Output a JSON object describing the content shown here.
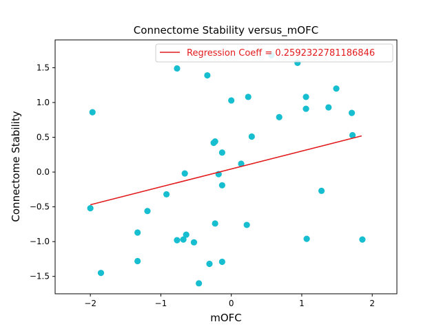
{
  "chart_data": {
    "type": "scatter",
    "title": "Connectome Stability versus_mOFC",
    "xlabel": "mOFC",
    "ylabel": "Connectome Stability",
    "xlim": [
      -2.5,
      2.35
    ],
    "ylim": [
      -1.75,
      1.9
    ],
    "xticks": [
      -2,
      -1,
      0,
      1,
      2
    ],
    "xtick_labels": [
      "−2",
      "−1",
      "0",
      "1",
      "2"
    ],
    "yticks": [
      -1.5,
      -1.0,
      -0.5,
      0.0,
      0.5,
      1.0,
      1.5
    ],
    "ytick_labels": [
      "−1.5",
      "−1.0",
      "−0.5",
      "0.0",
      "0.5",
      "1.0",
      "1.5"
    ],
    "grid": false,
    "legend_position": "top-right",
    "series": [
      {
        "name": "data",
        "kind": "scatter",
        "color": "#17becf",
        "points": [
          {
            "x": -2.0,
            "y": -0.52
          },
          {
            "x": -1.97,
            "y": 0.86
          },
          {
            "x": -1.85,
            "y": -1.45
          },
          {
            "x": -1.33,
            "y": -0.87
          },
          {
            "x": -1.33,
            "y": -1.28
          },
          {
            "x": -1.19,
            "y": -0.56
          },
          {
            "x": -0.92,
            "y": -0.32
          },
          {
            "x": -0.77,
            "y": 1.49
          },
          {
            "x": -0.77,
            "y": -0.98
          },
          {
            "x": -0.68,
            "y": -0.97
          },
          {
            "x": -0.66,
            "y": -0.02
          },
          {
            "x": -0.64,
            "y": -0.9
          },
          {
            "x": -0.53,
            "y": -1.01
          },
          {
            "x": -0.46,
            "y": -1.6
          },
          {
            "x": -0.34,
            "y": 1.39
          },
          {
            "x": -0.31,
            "y": -1.32
          },
          {
            "x": -0.25,
            "y": 0.42
          },
          {
            "x": -0.23,
            "y": 0.44
          },
          {
            "x": -0.23,
            "y": -0.74
          },
          {
            "x": -0.18,
            "y": -0.03
          },
          {
            "x": -0.13,
            "y": 0.28
          },
          {
            "x": -0.13,
            "y": -0.19
          },
          {
            "x": -0.13,
            "y": -1.29
          },
          {
            "x": 0.0,
            "y": 1.03
          },
          {
            "x": 0.14,
            "y": 0.12
          },
          {
            "x": 0.22,
            "y": -0.76
          },
          {
            "x": 0.24,
            "y": 1.08
          },
          {
            "x": 0.29,
            "y": 0.51
          },
          {
            "x": 0.57,
            "y": 1.68
          },
          {
            "x": 0.68,
            "y": 0.79
          },
          {
            "x": 0.94,
            "y": 1.57
          },
          {
            "x": 1.06,
            "y": 1.08
          },
          {
            "x": 1.06,
            "y": 0.91
          },
          {
            "x": 1.07,
            "y": -0.96
          },
          {
            "x": 1.28,
            "y": -0.27
          },
          {
            "x": 1.38,
            "y": 0.93
          },
          {
            "x": 1.49,
            "y": 1.2
          },
          {
            "x": 1.71,
            "y": 0.85
          },
          {
            "x": 1.72,
            "y": 0.53
          },
          {
            "x": 1.86,
            "y": -0.97
          }
        ]
      },
      {
        "name": "Regression Coeff = 0.2592322781186846",
        "kind": "line",
        "color": "#e31a1c",
        "x": [
          -2.0,
          1.85
        ],
        "y": [
          -0.47,
          0.52
        ]
      }
    ],
    "legend": [
      {
        "label": "Regression Coeff = 0.2592322781186846",
        "color": "#e31a1c"
      }
    ]
  }
}
